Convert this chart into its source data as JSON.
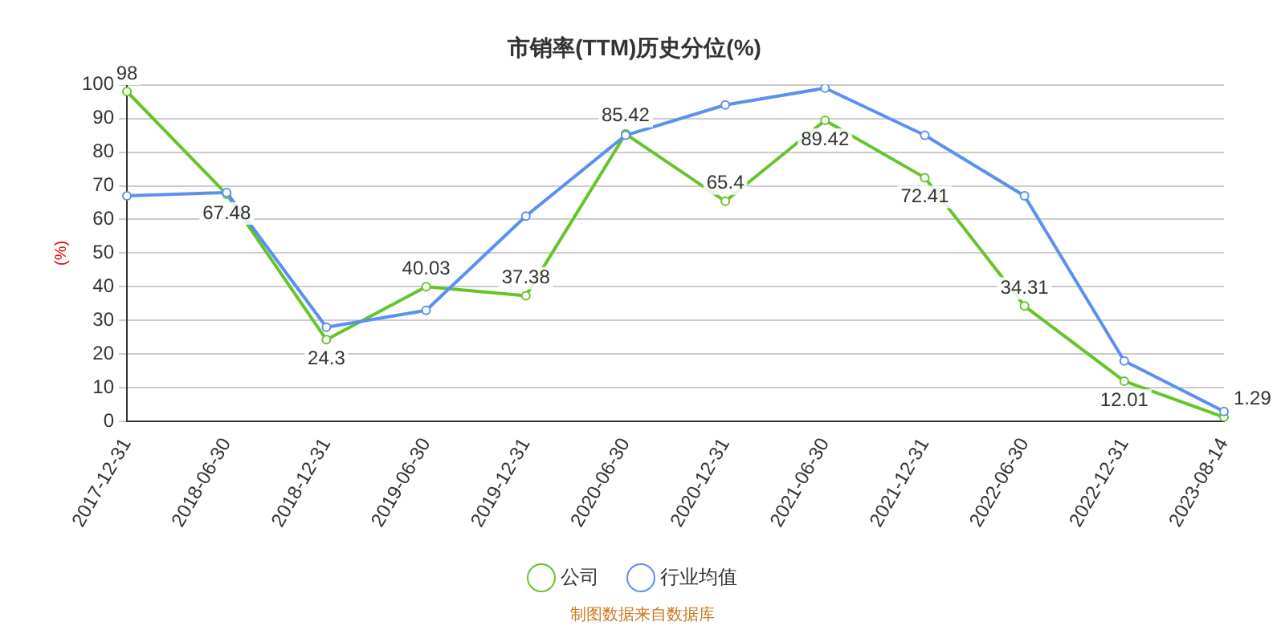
{
  "chart_data": {
    "type": "line",
    "title": "市销率(TTM)历史分位(%)",
    "ylabel": "(%)",
    "categories": [
      "2017-12-31",
      "2018-06-30",
      "2018-12-31",
      "2019-06-30",
      "2019-12-31",
      "2020-06-30",
      "2020-12-31",
      "2021-06-30",
      "2021-12-31",
      "2022-06-30",
      "2022-12-31",
      "2023-08-14"
    ],
    "series": [
      {
        "name": "公司",
        "color": "#66c42b",
        "values": [
          98,
          67.48,
          24.3,
          40.03,
          37.38,
          85.42,
          65.4,
          89.42,
          72.41,
          34.31,
          12.01,
          1.29
        ],
        "value_labels": [
          "98",
          "67.48",
          "24.3",
          "40.03",
          "37.38",
          "85.42",
          "65.4",
          "89.42",
          "72.41",
          "34.31",
          "12.01",
          "1.29"
        ]
      },
      {
        "name": "行业均值",
        "color": "#5b8ff0",
        "values": [
          67,
          68,
          28,
          33,
          61,
          85,
          94,
          99,
          85,
          67,
          18,
          3
        ]
      }
    ],
    "ylim": [
      0,
      100
    ],
    "yticks": [
      0,
      10,
      20,
      30,
      40,
      50,
      60,
      70,
      80,
      90,
      100
    ],
    "grid": "y",
    "legend": "bottom",
    "marker": "circle",
    "line_style": "solid",
    "annotations": [
      "制图数据来自数据库"
    ]
  }
}
